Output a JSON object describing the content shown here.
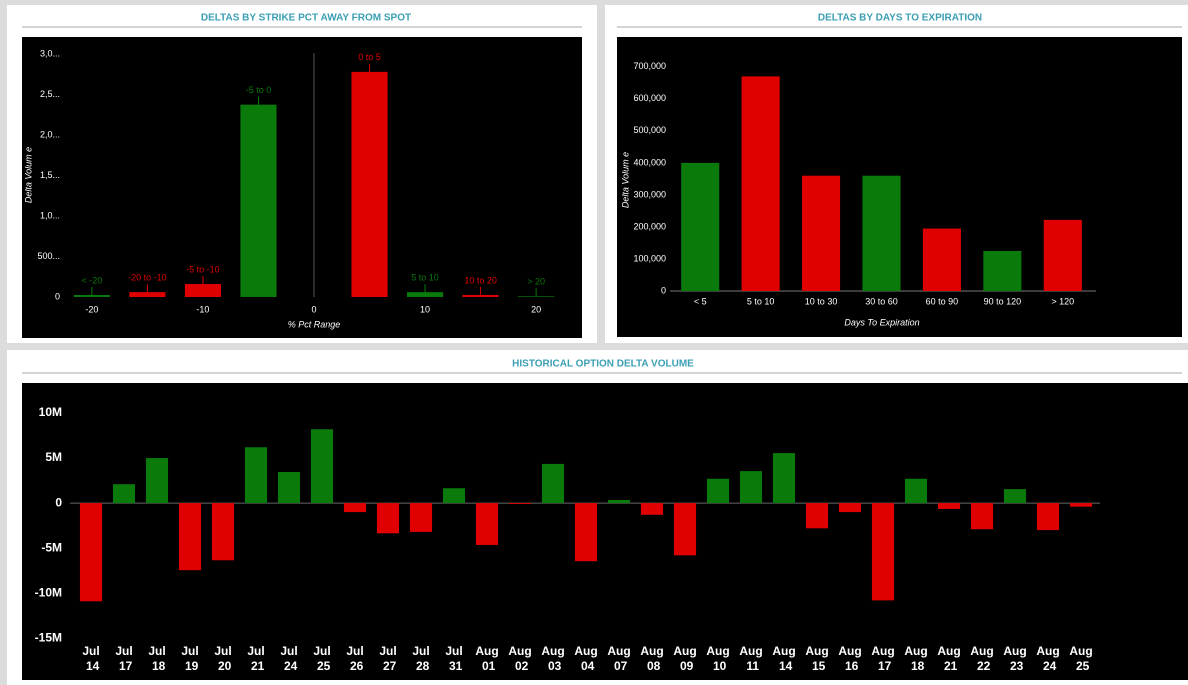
{
  "chart_data": [
    {
      "type": "bar",
      "title": "DELTAS BY STRIKE PCT AWAY FROM SPOT",
      "xlabel": "% Pct Range",
      "ylabel": "Delta Volum e",
      "categories": [
        "< -20",
        "-20 to -10",
        "-5 to -10",
        "-5 to 0",
        "0 to 5",
        "5 to 10",
        "10 to 20",
        "> 20"
      ],
      "x": [
        -20,
        -15,
        -10,
        -5,
        5,
        10,
        15,
        20
      ],
      "values": [
        25000,
        60000,
        160000,
        2375000,
        2780000,
        60000,
        25000,
        8000
      ],
      "colors": [
        "#0a7a0a",
        "#e00000",
        "#e00000",
        "#0a7a0a",
        "#e00000",
        "#0a7a0a",
        "#e00000",
        "#0a7a0a"
      ],
      "xlim": [
        -22.6,
        22.6
      ],
      "xticks": [
        -20,
        -10,
        0,
        10,
        20
      ],
      "ylim": [
        0,
        3050000
      ],
      "yticks": [
        0,
        {
          "value": 500000,
          "label": "500..."
        },
        {
          "value": 1000000,
          "label": "1,0..."
        },
        {
          "value": 1500000,
          "label": "1,5..."
        },
        {
          "value": 2000000,
          "label": "2,0..."
        },
        {
          "value": 2500000,
          "label": "2,5..."
        },
        {
          "value": 3000000,
          "label": "3,0..."
        }
      ]
    },
    {
      "type": "bar",
      "title": "DELTAS BY DAYS TO EXPIRATION",
      "xlabel": "Days To Expiration",
      "ylabel": "Delta Volum e",
      "categories": [
        "< 5",
        "5 to 10",
        "10 to 30",
        "30 to 60",
        "60 to 90",
        "90 to 120",
        "> 120"
      ],
      "values": [
        400000,
        670000,
        360000,
        360000,
        195000,
        125000,
        222000
      ],
      "colors": [
        "#0a7a0a",
        "#e00000",
        "#e00000",
        "#0a7a0a",
        "#e00000",
        "#0a7a0a",
        "#e00000"
      ],
      "ylim": [
        0,
        715000
      ],
      "yticks": [
        0,
        {
          "value": 100000,
          "label": "100,000"
        },
        {
          "value": 200000,
          "label": "200,000"
        },
        {
          "value": 300000,
          "label": "300,000"
        },
        {
          "value": 400000,
          "label": "400,000"
        },
        {
          "value": 500000,
          "label": "500,000"
        },
        {
          "value": 600000,
          "label": "600,000"
        },
        {
          "value": 700000,
          "label": "700,000"
        }
      ]
    },
    {
      "type": "bar",
      "title": "HISTORICAL OPTION DELTA VOLUME",
      "categories": [
        "Jul 14",
        "Jul 17",
        "Jul 18",
        "Jul 19",
        "Jul 20",
        "Jul 21",
        "Jul 24",
        "Jul 25",
        "Jul 26",
        "Jul 27",
        "Jul 28",
        "Jul 31",
        "Aug 01",
        "Aug 02",
        "Aug 03",
        "Aug 04",
        "Aug 07",
        "Aug 08",
        "Aug 09",
        "Aug 10",
        "Aug 11",
        "Aug 14",
        "Aug 15",
        "Aug 16",
        "Aug 17",
        "Aug 18",
        "Aug 21",
        "Aug 22",
        "Aug 23",
        "Aug 24",
        "Aug 25"
      ],
      "values": [
        -10900000,
        2100000,
        5000000,
        -7450000,
        -6350000,
        6200000,
        3450000,
        8200000,
        -1000000,
        -3350000,
        -3200000,
        1650000,
        -4650000,
        -100000,
        4350000,
        -6450000,
        350000,
        -1300000,
        -5800000,
        2700000,
        3550000,
        5550000,
        -2800000,
        -1000000,
        -10800000,
        2700000,
        -650000,
        -2900000,
        1550000,
        -3000000,
        -400000
      ],
      "positive_color": "#0a7a0a",
      "negative_color": "#e00000",
      "ylim": [
        -15200000,
        12000000
      ],
      "yticks": [
        {
          "value": 10000000,
          "label": "10M"
        },
        {
          "value": 5000000,
          "label": "5M"
        },
        0,
        {
          "value": -5000000,
          "label": "-5M"
        },
        {
          "value": -10000000,
          "label": "-10M"
        },
        {
          "value": -15000000,
          "label": "-15M"
        }
      ]
    }
  ]
}
